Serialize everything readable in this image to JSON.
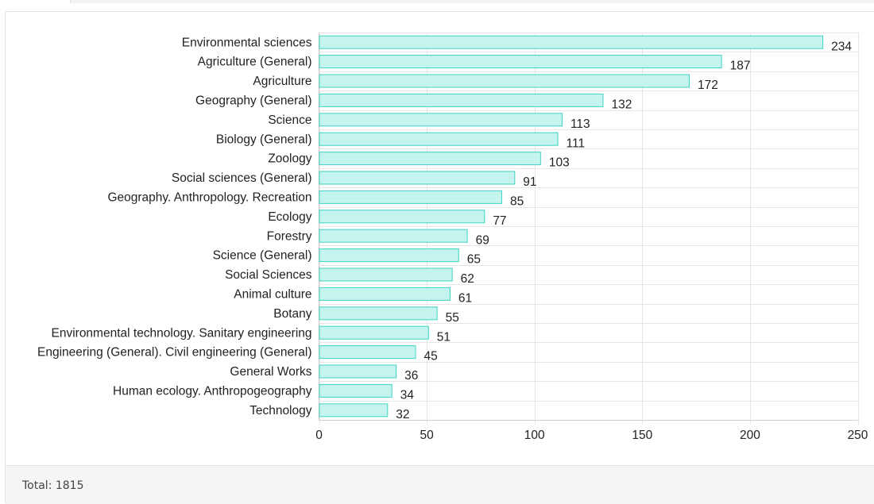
{
  "chart_data": {
    "type": "bar",
    "orientation": "horizontal",
    "categories": [
      "Environmental sciences",
      "Agriculture (General)",
      "Agriculture",
      "Geography (General)",
      "Science",
      "Biology (General)",
      "Zoology",
      "Social sciences (General)",
      "Geography. Anthropology. Recreation",
      "Ecology",
      "Forestry",
      "Science (General)",
      "Social Sciences",
      "Animal culture",
      "Botany",
      "Environmental technology. Sanitary engineering",
      "Engineering (General). Civil engineering (General)",
      "General Works",
      "Human ecology. Anthropogeography",
      "Technology"
    ],
    "values": [
      234,
      187,
      172,
      132,
      113,
      111,
      103,
      91,
      85,
      77,
      69,
      65,
      62,
      61,
      55,
      51,
      45,
      36,
      34,
      32
    ],
    "xlim": [
      0,
      250
    ],
    "xticks": [
      0,
      50,
      100,
      150,
      200,
      250
    ],
    "grid": true,
    "data_labels": true,
    "title": "",
    "xlabel": "",
    "ylabel": "",
    "colors": {
      "bar_fill": "#c5f4ef",
      "bar_stroke": "#3fd3c3",
      "grid": "#e6e6e6"
    }
  },
  "footer": {
    "total_text": "Total: 1815"
  }
}
